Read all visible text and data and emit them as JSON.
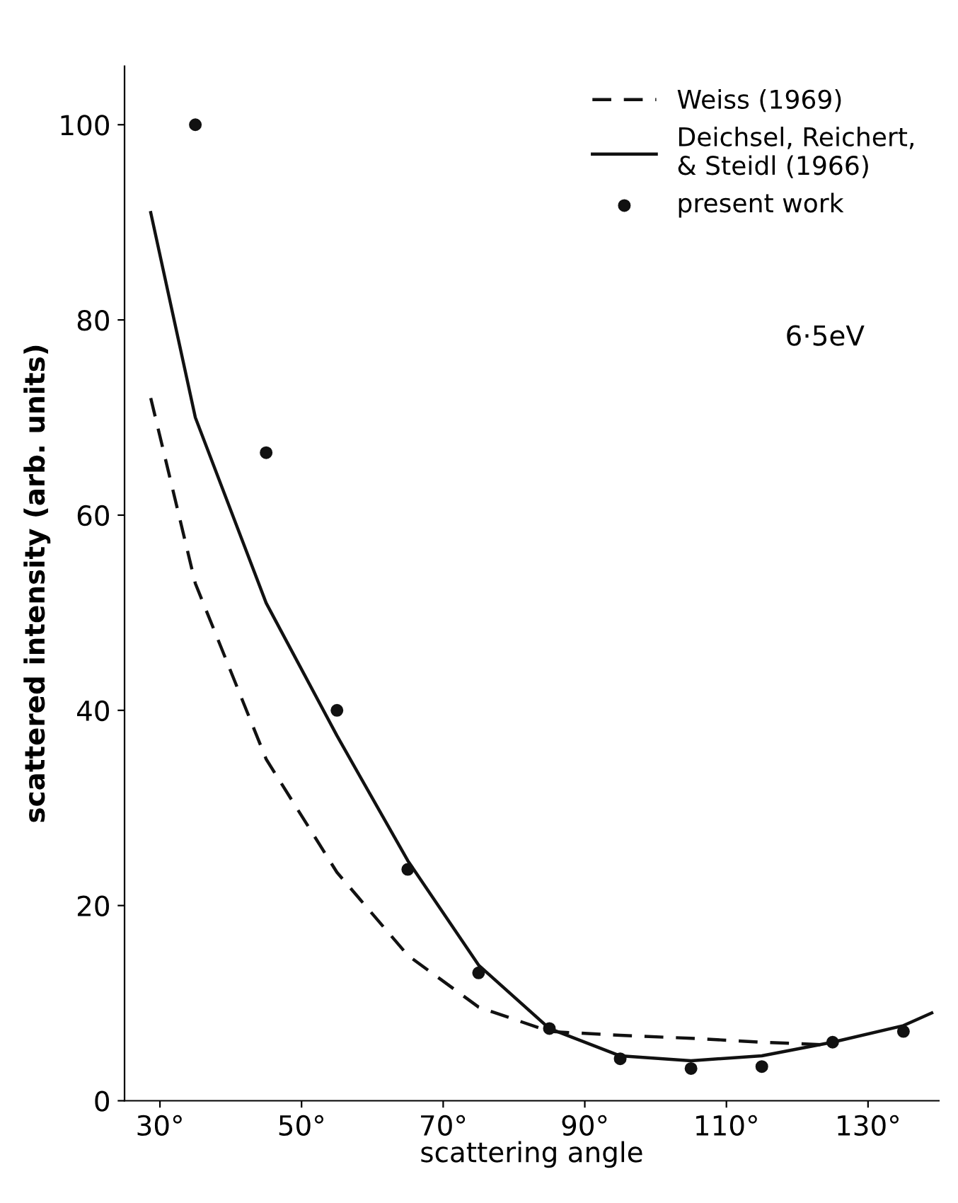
{
  "chart_data": {
    "type": "line",
    "xlabel": "scattering angle",
    "ylabel": "scattered intensity (arb. units)",
    "xlim": [
      25,
      140
    ],
    "ylim": [
      0,
      106
    ],
    "xticks": [
      {
        "value": 30,
        "label": "30°"
      },
      {
        "value": 50,
        "label": "50°"
      },
      {
        "value": 70,
        "label": "70°"
      },
      {
        "value": 90,
        "label": "90°"
      },
      {
        "value": 110,
        "label": "110°"
      },
      {
        "value": 130,
        "label": "130°"
      }
    ],
    "yticks": [
      0,
      20,
      40,
      60,
      80,
      100
    ],
    "grid": false,
    "legend": "top right",
    "series": [
      {
        "name": "Weiss (1969)",
        "line_style": "dashed",
        "color": "#111111",
        "x": [
          28.7,
          35,
          45,
          55,
          65,
          75,
          85,
          95,
          105,
          115,
          125
        ],
        "values": [
          72,
          53,
          35,
          23.4,
          14.9,
          9.6,
          7.1,
          6.7,
          6.4,
          6,
          5.7
        ]
      },
      {
        "name": "Deichsel, Reichert,\n& Steidl (1966)",
        "line_style": "solid",
        "color": "#111111",
        "x": [
          28.7,
          35,
          45,
          55,
          65,
          75,
          85,
          95,
          105,
          115,
          125,
          135,
          139
        ],
        "values": [
          91,
          70,
          51,
          37.4,
          24.6,
          13.9,
          7.4,
          4.6,
          4.1,
          4.6,
          6,
          7.7,
          9
        ]
      },
      {
        "name": "present work",
        "type": "scatter",
        "marker": "circle",
        "color": "#111111",
        "x": [
          35,
          45,
          55,
          65,
          75,
          85,
          95,
          105,
          115,
          125,
          135
        ],
        "values": [
          100,
          66.4,
          40,
          23.7,
          13.1,
          7.4,
          4.3,
          3.3,
          3.5,
          6,
          7.1
        ]
      }
    ],
    "annotations": [
      "6·5eV"
    ]
  }
}
